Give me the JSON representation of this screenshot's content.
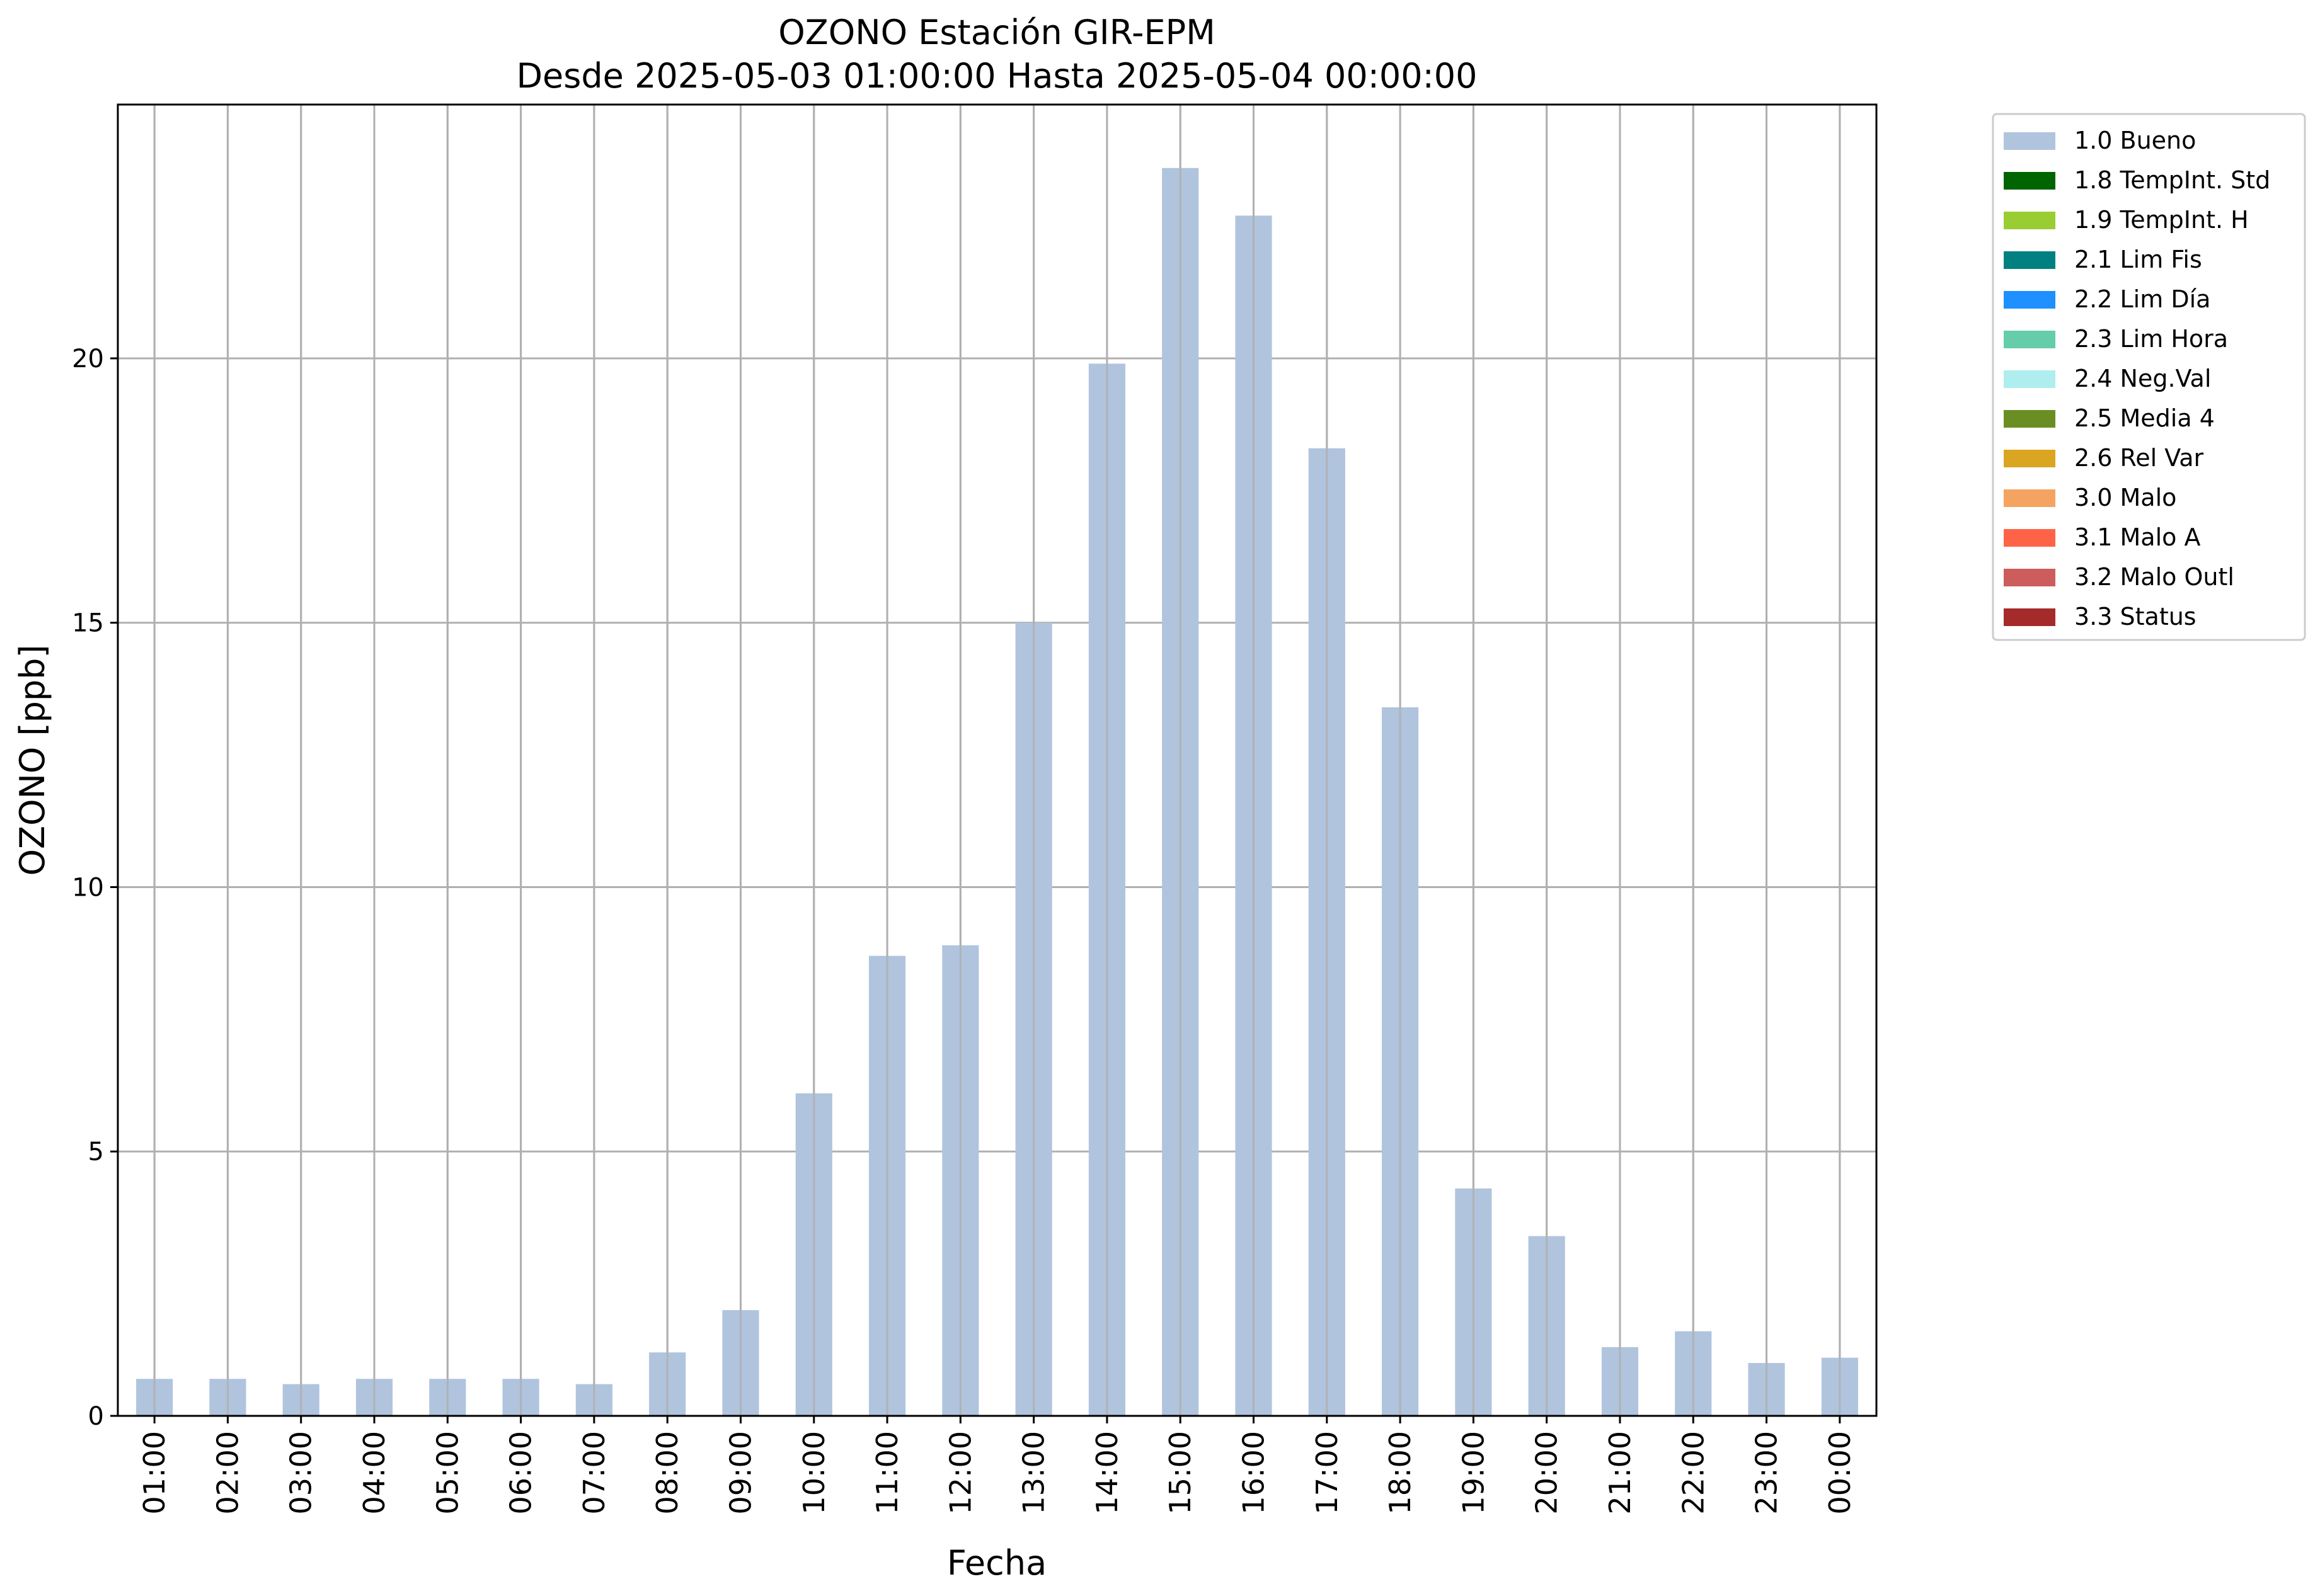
{
  "chart_data": {
    "type": "bar",
    "title": "OZONO Estación GIR-EPM",
    "subtitle": "Desde 2025-05-03 01:00:00 Hasta 2025-05-04 00:00:00",
    "xlabel": "Fecha",
    "ylabel": "OZONO [ppb]",
    "ylim": [
      0,
      24.8
    ],
    "yticks": [
      0,
      5,
      10,
      15,
      20
    ],
    "grid": true,
    "legend_position": "outside-top-right",
    "categories": [
      "01:00",
      "02:00",
      "03:00",
      "04:00",
      "05:00",
      "06:00",
      "07:00",
      "08:00",
      "09:00",
      "10:00",
      "11:00",
      "12:00",
      "13:00",
      "14:00",
      "15:00",
      "16:00",
      "17:00",
      "18:00",
      "19:00",
      "20:00",
      "21:00",
      "22:00",
      "23:00",
      "00:00"
    ],
    "series": [
      {
        "name": "1.0 Bueno",
        "color": "#b0c4de",
        "values": [
          0.7,
          0.7,
          0.6,
          0.7,
          0.7,
          0.7,
          0.6,
          1.2,
          2.0,
          6.1,
          8.7,
          8.9,
          15.0,
          19.9,
          23.6,
          22.7,
          18.3,
          13.4,
          4.3,
          3.4,
          1.3,
          1.6,
          1.0,
          1.1
        ]
      }
    ],
    "legend": [
      {
        "label": "1.0 Bueno",
        "color": "#b0c4de"
      },
      {
        "label": "1.8 TempInt. Std",
        "color": "#006400"
      },
      {
        "label": "1.9 TempInt. H",
        "color": "#9acd32"
      },
      {
        "label": "2.1 Lim Fis",
        "color": "#008080"
      },
      {
        "label": "2.2 Lim Día",
        "color": "#1e90ff"
      },
      {
        "label": "2.3 Lim Hora",
        "color": "#66cdaa"
      },
      {
        "label": "2.4 Neg.Val",
        "color": "#afeeee"
      },
      {
        "label": "2.5 Media 4",
        "color": "#6b8e23"
      },
      {
        "label": "2.6 Rel Var",
        "color": "#daa520"
      },
      {
        "label": "3.0 Malo",
        "color": "#f4a460"
      },
      {
        "label": "3.1 Malo A",
        "color": "#ff6347"
      },
      {
        "label": "3.2 Malo Outl",
        "color": "#cd5c5c"
      },
      {
        "label": "3.3 Status",
        "color": "#a52a2a"
      }
    ]
  }
}
